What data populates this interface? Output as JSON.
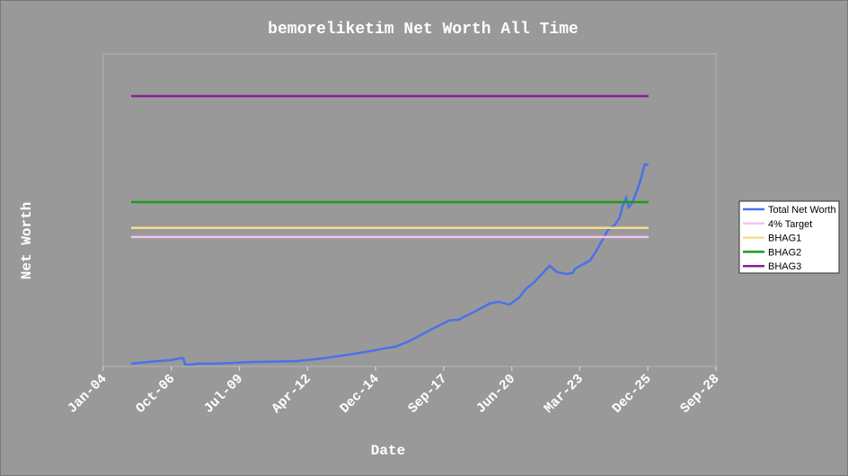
{
  "chart_data": {
    "type": "line",
    "title": "bemoreliketim Net Worth All Time",
    "x_label": "Date",
    "y_label": "Net Worth",
    "xlim": [
      2004.0,
      2028.64
    ],
    "ylim": [
      0,
      100
    ],
    "xticks": [
      {
        "value": 2004.0,
        "label": "Jan-04"
      },
      {
        "value": 2006.74,
        "label": "Oct-06"
      },
      {
        "value": 2009.48,
        "label": "Jul-09"
      },
      {
        "value": 2012.21,
        "label": "Apr-12"
      },
      {
        "value": 2014.95,
        "label": "Dec-14"
      },
      {
        "value": 2017.69,
        "label": "Sep-17"
      },
      {
        "value": 2020.43,
        "label": "Jun-20"
      },
      {
        "value": 2023.16,
        "label": "Mar-23"
      },
      {
        "value": 2025.9,
        "label": "Dec-25"
      },
      {
        "value": 2028.64,
        "label": "Sep-28"
      }
    ],
    "legend": "right",
    "series": [
      {
        "name": "Total Net Worth",
        "color": "#4a72e8",
        "x": [
          2005.12,
          2006.17,
          2006.71,
          2007.07,
          2007.22,
          2007.29,
          2007.54,
          2007.79,
          2008.52,
          2009.96,
          2011.77,
          2012.85,
          2014.3,
          2014.95,
          2015.24,
          2015.74,
          2016.28,
          2017.19,
          2017.91,
          2018.27,
          2018.81,
          2019.53,
          2019.89,
          2020.33,
          2020.73,
          2020.98,
          2021.34,
          2021.95,
          2022.24,
          2022.61,
          2022.89,
          2022.97,
          2023.58,
          2023.87,
          2024.3,
          2024.59,
          2024.77,
          2024.88,
          2025.03,
          2025.13,
          2025.28,
          2025.57,
          2025.78,
          2025.93
        ],
        "values": [
          0.9,
          1.7,
          2.0,
          2.6,
          2.6,
          0.6,
          0.6,
          0.9,
          0.9,
          1.4,
          1.7,
          2.6,
          4.3,
          5.2,
          5.7,
          6.3,
          8.0,
          11.8,
          14.7,
          14.9,
          17.0,
          20.1,
          20.7,
          19.8,
          22.1,
          24.7,
          27.0,
          32.2,
          30.2,
          29.6,
          29.9,
          31.3,
          33.9,
          37.6,
          43.7,
          45.4,
          47.7,
          51.1,
          54.0,
          50.9,
          52.3,
          58.6,
          64.7,
          64.4
        ]
      },
      {
        "name": "4% Target",
        "color": "#f2c4ee",
        "x": [
          2005.12,
          2025.93
        ],
        "values": [
          41.4,
          41.4
        ]
      },
      {
        "name": "BHAG1",
        "color": "#f6de8c",
        "x": [
          2005.12,
          2025.93
        ],
        "values": [
          44.3,
          44.3
        ]
      },
      {
        "name": "BHAG2",
        "color": "#1e9a1e",
        "x": [
          2005.12,
          2025.93
        ],
        "values": [
          52.6,
          52.6
        ]
      },
      {
        "name": "BHAG3",
        "color": "#8a1e9a",
        "x": [
          2005.12,
          2025.93
        ],
        "values": [
          86.5,
          86.5
        ]
      }
    ]
  }
}
